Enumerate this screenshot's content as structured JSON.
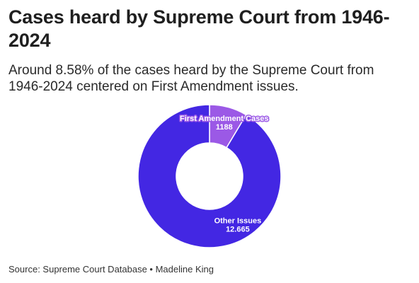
{
  "title": "Cases heard by Supreme Court from 1946-2024",
  "subtitle": "Around 8.58% of the cases heard by the Supreme Court from 1946-2024 centered on First Amendment issues.",
  "source": "Source: Supreme Court Database • Madeline King",
  "chart_data": {
    "type": "pie",
    "variant": "donut",
    "slices": [
      {
        "label": "First Amendment Cases",
        "value": 1188,
        "value_text": "1188",
        "color": "#9b59e6"
      },
      {
        "label": "Other Issues",
        "value": 12665,
        "value_text": "12.665",
        "color": "#4327e3"
      }
    ]
  }
}
